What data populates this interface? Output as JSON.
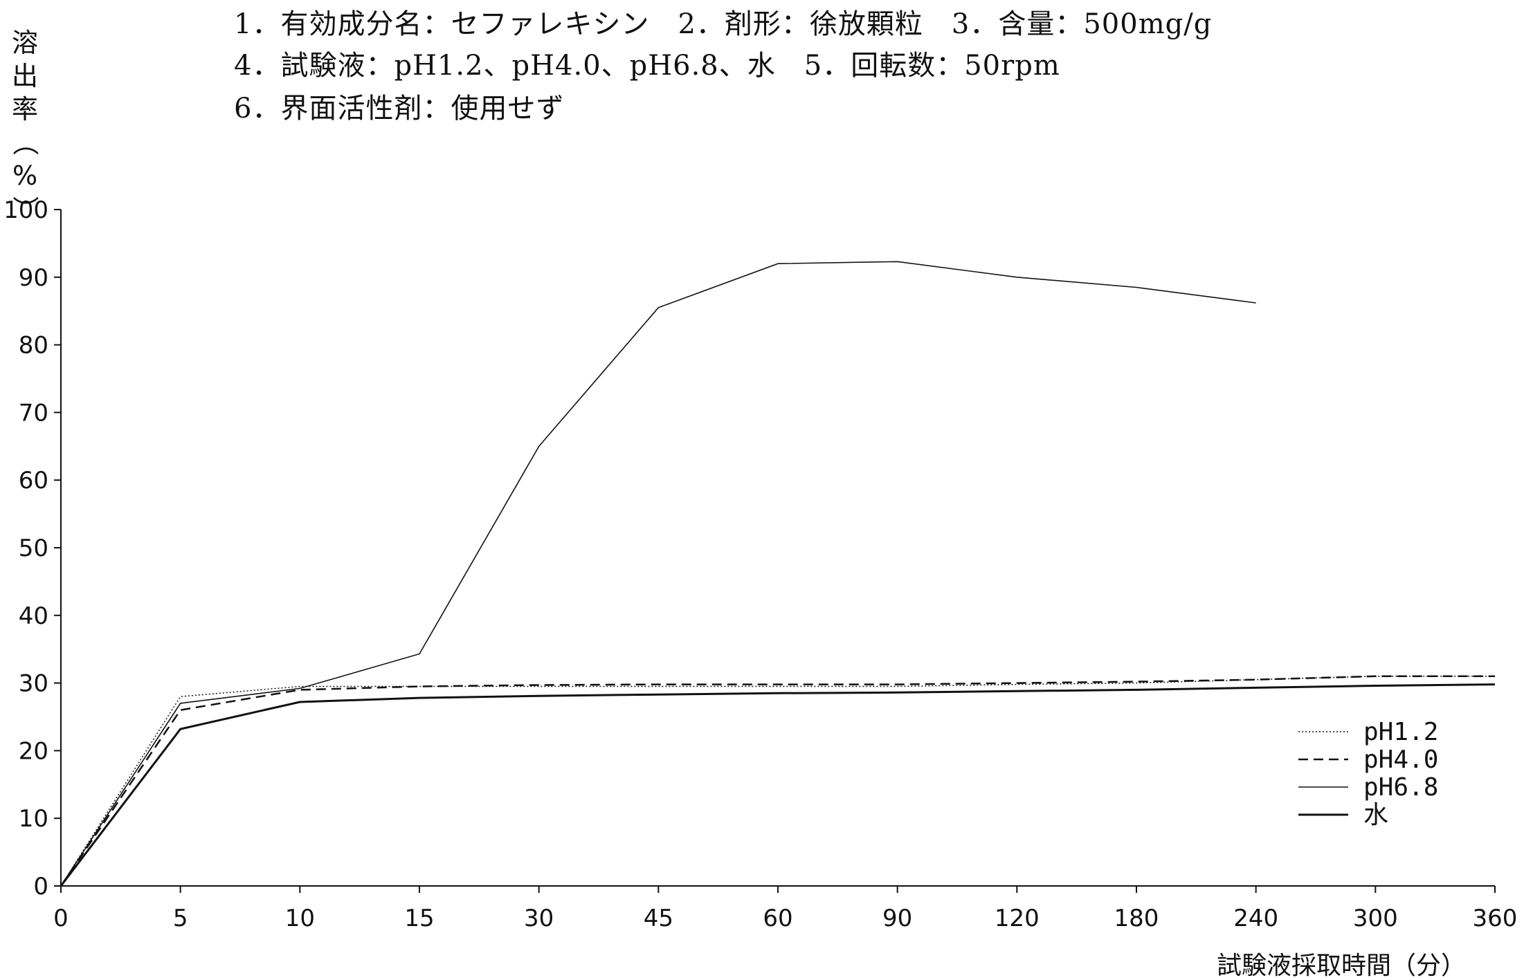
{
  "header": {
    "line1": "1．有効成分名：セファレキシン　2．剤形：徐放顆粒　3．含量：500mg/g",
    "line2": "4．試験液：pH1.2、pH4.0、pH6.8、水　5．回転数：50rpm",
    "line3": "6．界面活性剤：使用せず"
  },
  "chart_data": {
    "type": "line",
    "title": "",
    "ylabel_chars": [
      "溶",
      "出",
      "率",
      "（",
      "%",
      "）"
    ],
    "ylabel": "溶出率（%）",
    "xlabel": "試験液採取時間（分）",
    "categories": [
      "0",
      "5",
      "10",
      "15",
      "30",
      "45",
      "60",
      "90",
      "120",
      "180",
      "240",
      "300",
      "360"
    ],
    "ylim": [
      0,
      100
    ],
    "yticks": [
      "0",
      "10",
      "20",
      "30",
      "40",
      "50",
      "60",
      "70",
      "80",
      "90",
      "100"
    ],
    "grid": false,
    "legend_position": "right",
    "series": [
      {
        "name": "pH1.2",
        "style": "dotted",
        "values": [
          0,
          28,
          29.5,
          29.5,
          29.5,
          29.5,
          29.5,
          29.5,
          29.8,
          30,
          30.5,
          31,
          31
        ]
      },
      {
        "name": "pH4.0",
        "style": "dashed",
        "values": [
          0,
          26,
          29,
          29.5,
          29.7,
          29.8,
          29.8,
          29.8,
          30,
          30.2,
          30.5,
          31,
          31
        ]
      },
      {
        "name": "pH6.8",
        "style": "thin",
        "values": [
          0,
          27,
          29.2,
          34.3,
          65,
          85.5,
          92,
          92.3,
          90,
          88.5,
          86.2,
          null,
          null
        ]
      },
      {
        "name": "水",
        "style": "solid",
        "values": [
          0,
          23.2,
          27.2,
          27.8,
          28.1,
          28.3,
          28.5,
          28.6,
          28.8,
          29,
          29.3,
          29.6,
          29.8
        ]
      }
    ]
  }
}
